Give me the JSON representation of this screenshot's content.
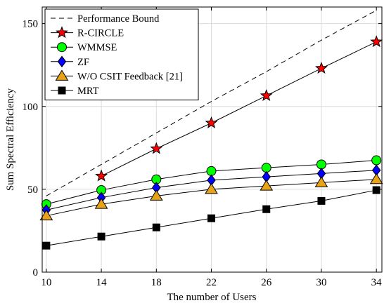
{
  "chart_data": {
    "type": "line",
    "title": "",
    "xlabel": "The number of Users",
    "ylabel": "Sum Spectral Efficiency",
    "x": [
      10,
      14,
      18,
      22,
      26,
      30,
      34
    ],
    "xticks": [
      "10",
      "14",
      "18",
      "22",
      "26",
      "30",
      "34"
    ],
    "yticks": [
      "0",
      "50",
      "100",
      "150"
    ],
    "xlim": [
      9.7,
      34.4
    ],
    "ylim": [
      0,
      160
    ],
    "grid": true,
    "legend_position": "top-left",
    "series": [
      {
        "name": "Performance Bound",
        "values": [
          46,
          65,
          84,
          103,
          121,
          140,
          158
        ],
        "color": "#000000",
        "dash": true,
        "marker": "none"
      },
      {
        "name": "R-CIRCLE",
        "values": [
          null,
          58,
          74.5,
          90,
          106.5,
          123,
          139
        ],
        "color": "#ff0000",
        "marker": "star"
      },
      {
        "name": "WMMSE",
        "values": [
          41,
          49.5,
          56,
          61,
          63,
          65,
          67.5
        ],
        "color": "#00ff00",
        "marker": "circle"
      },
      {
        "name": "ZF",
        "values": [
          37.5,
          45,
          51,
          55.5,
          57.5,
          59.5,
          61.5
        ],
        "color": "#0000ff",
        "marker": "diamond"
      },
      {
        "name": "W/O CSIT Feedback [21]",
        "values": [
          34,
          41,
          46,
          50,
          52,
          54,
          56
        ],
        "color": "#e8a317",
        "marker": "triangle"
      },
      {
        "name": "MRT",
        "values": [
          16,
          21.5,
          27,
          32.5,
          38,
          43,
          49.5
        ],
        "color": "#000000",
        "marker": "square"
      }
    ]
  }
}
